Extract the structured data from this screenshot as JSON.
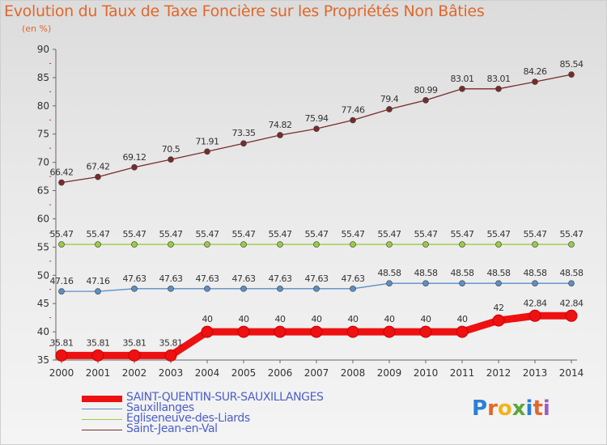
{
  "title": "Evolution du Taux de Taxe Foncière sur les Propriétés Non Bâties",
  "subtitle": "(en %)",
  "brand": {
    "letters": [
      "P",
      "r",
      "o",
      "x",
      "i",
      "t",
      "i"
    ],
    "colors": [
      "#2c7fd6",
      "#e0682a",
      "#f2b31b",
      "#58a83a",
      "#2c7fd6",
      "#e0682a",
      "#9b5ec0"
    ]
  },
  "chart_data": {
    "type": "line",
    "x": [
      "2000",
      "2001",
      "2002",
      "2003",
      "2004",
      "2005",
      "2006",
      "2007",
      "2008",
      "2009",
      "2010",
      "2011",
      "2012",
      "2013",
      "2014"
    ],
    "ylim": [
      35,
      90
    ],
    "yticks": [
      "35",
      "40",
      "45",
      "50",
      "55",
      "60",
      "65",
      "70",
      "75",
      "80",
      "85",
      "90"
    ],
    "grid": false,
    "legend": "bottom-left",
    "series": [
      {
        "name": "Saint-Jean-en-Val",
        "color": "#7a2a2a",
        "values": [
          66.42,
          67.42,
          69.12,
          70.5,
          71.91,
          73.35,
          74.82,
          75.94,
          77.46,
          79.4,
          80.99,
          83.01,
          83.01,
          84.26,
          85.54
        ],
        "labels": [
          "66.42",
          "67.42",
          "69.12",
          "70.5",
          "71.91",
          "73.35",
          "74.82",
          "75.94",
          "77.46",
          "79.4",
          "80.99",
          "83.01",
          "83.01",
          "84.26",
          "85.54"
        ]
      },
      {
        "name": "Egliseneuve-des-Liards",
        "color": "#99cc44",
        "values": [
          55.47,
          55.47,
          55.47,
          55.47,
          55.47,
          55.47,
          55.47,
          55.47,
          55.47,
          55.47,
          55.47,
          55.47,
          55.47,
          55.47,
          55.47
        ],
        "labels": [
          "55.47",
          "55.47",
          "55.47",
          "55.47",
          "55.47",
          "55.47",
          "55.47",
          "55.47",
          "55.47",
          "55.47",
          "55.47",
          "55.47",
          "55.47",
          "55.47",
          "55.47"
        ]
      },
      {
        "name": "Sauxillanges",
        "color": "#5b8fc8",
        "values": [
          47.16,
          47.16,
          47.63,
          47.63,
          47.63,
          47.63,
          47.63,
          47.63,
          47.63,
          48.58,
          48.58,
          48.58,
          48.58,
          48.58,
          48.58
        ],
        "labels": [
          "47.16",
          "47.16",
          "47.63",
          "47.63",
          "47.63",
          "47.63",
          "47.63",
          "47.63",
          "47.63",
          "48.58",
          "48.58",
          "48.58",
          "48.58",
          "48.58",
          "48.58"
        ]
      },
      {
        "name": "SAINT-QUENTIN-SUR-SAUXILLANGES",
        "color": "#ee1111",
        "values": [
          35.81,
          35.81,
          35.81,
          35.81,
          40,
          40,
          40,
          40,
          40,
          40,
          40,
          40,
          42,
          42.84,
          42.84
        ],
        "labels": [
          "35.81",
          "35.81",
          "35.81",
          "35.81",
          "40",
          "40",
          "40",
          "40",
          "40",
          "40",
          "40",
          "40",
          "42",
          "42.84",
          "42.84"
        ]
      }
    ],
    "legend_order": [
      "SAINT-QUENTIN-SUR-SAUXILLANGES",
      "Sauxillanges",
      "Egliseneuve-des-Liards",
      "Saint-Jean-en-Val"
    ]
  }
}
